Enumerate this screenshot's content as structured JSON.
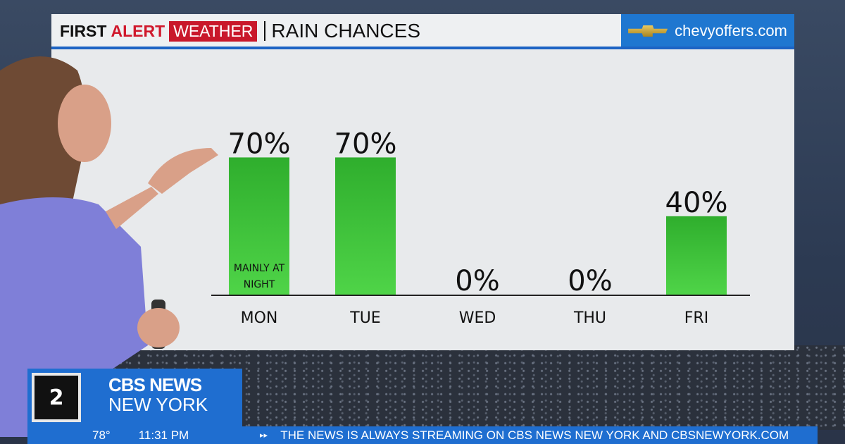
{
  "header": {
    "brand_first": "FIRST",
    "brand_alert": "ALERT",
    "brand_weather": "WEATHER",
    "title": "RAIN CHANCES",
    "sponsor": "chevyoffers.com"
  },
  "station": {
    "logo": "2",
    "name_line1": "CBS NEWS",
    "name_line2": "NEW YORK"
  },
  "ticker": {
    "temperature": "78°",
    "time": "11:31 PM",
    "message": "THE NEWS IS ALWAYS STREAMING ON CBS NEWS NEW YORK AND CBSNEWYORK.COM"
  },
  "colors": {
    "bar": "#3cc43a",
    "accent": "#1f6ed0",
    "alert_red": "#c9182b"
  },
  "chart_data": {
    "type": "bar",
    "title": "RAIN CHANCES",
    "categories": [
      "MON",
      "TUE",
      "WED",
      "THU",
      "FRI"
    ],
    "values": [
      70,
      70,
      0,
      0,
      40
    ],
    "data_labels": [
      "70%",
      "70%",
      "0%",
      "0%",
      "40%"
    ],
    "annotations": [
      {
        "category": "MON",
        "text_line1": "MAINLY AT",
        "text_line2": "NIGHT"
      }
    ],
    "unit": "%",
    "ylim": [
      0,
      100
    ],
    "grid": false
  }
}
